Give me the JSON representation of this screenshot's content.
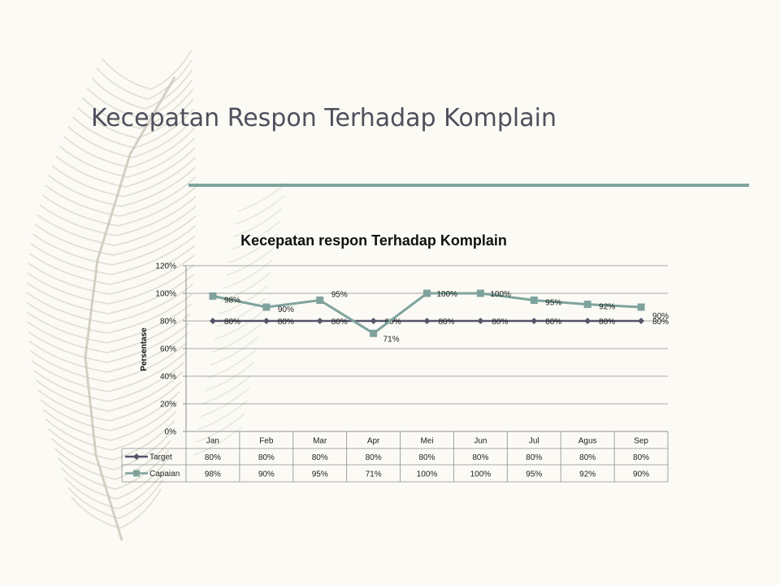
{
  "slide": {
    "title": "Kecepatan Respon Terhadap Komplain"
  },
  "colors": {
    "accent_line": "#7ea39c",
    "target": "#55546a",
    "capaian": "#7ea39c",
    "grid": "#8c8c8c",
    "feather": "#c9c7b6"
  },
  "chart_data": {
    "type": "line",
    "title": "Kecepatan respon Terhadap Komplain",
    "xlabel": "",
    "ylabel": "Persentase",
    "ylim": [
      0,
      120
    ],
    "yticks": [
      0,
      20,
      40,
      60,
      80,
      100,
      120
    ],
    "ytick_labels": [
      "0%",
      "20%",
      "40%",
      "60%",
      "80%",
      "100%",
      "120%"
    ],
    "categories": [
      "Jan",
      "Feb",
      "Mar",
      "Apr",
      "Mei",
      "Jun",
      "Jul",
      "Agus",
      "Sep"
    ],
    "series": [
      {
        "name": "Target",
        "values": [
          80,
          80,
          80,
          80,
          80,
          80,
          80,
          80,
          80
        ],
        "labels": [
          "80%",
          "80%",
          "80%",
          "80%",
          "80%",
          "80%",
          "80%",
          "80%",
          "80%"
        ],
        "marker": "diamond"
      },
      {
        "name": "Capaian",
        "values": [
          98,
          90,
          95,
          71,
          100,
          100,
          95,
          92,
          90
        ],
        "labels": [
          "98%",
          "90%",
          "95%",
          "71%",
          "100%",
          "100%",
          "95%",
          "92%",
          "90%"
        ],
        "marker": "square"
      }
    ],
    "grid": true,
    "legend": "data table"
  }
}
